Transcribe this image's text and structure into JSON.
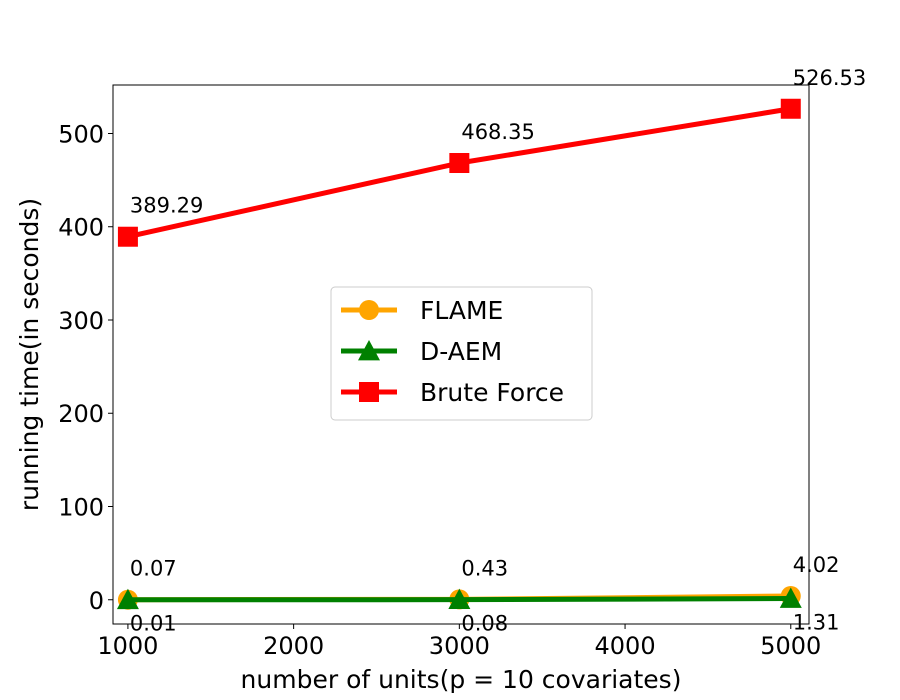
{
  "chart_data": {
    "type": "line",
    "xlabel": "number of units(p = 10 covariates)",
    "ylabel": "running time(in seconds)",
    "x": [
      1000,
      3000,
      5000
    ],
    "xlim": [
      910,
      5110
    ],
    "ylim": [
      -26,
      552
    ],
    "xticks": [
      1000,
      2000,
      3000,
      4000,
      5000
    ],
    "yticks": [
      0,
      100,
      200,
      300,
      400,
      500
    ],
    "grid": false,
    "legend_position": "center",
    "series": [
      {
        "name": "FLAME",
        "values": [
          0.07,
          0.43,
          4.02
        ],
        "color": "#FFA500",
        "marker": "circle"
      },
      {
        "name": "D-AEM",
        "values": [
          0.01,
          0.08,
          1.31
        ],
        "color": "#008000",
        "marker": "triangle"
      },
      {
        "name": "Brute Force",
        "values": [
          389.29,
          468.35,
          526.53
        ],
        "color": "#FF0000",
        "marker": "square"
      }
    ],
    "annotations": [
      {
        "text": "389.29",
        "x": 1000,
        "y": 389.29,
        "position": "above"
      },
      {
        "text": "468.35",
        "x": 3000,
        "y": 468.35,
        "position": "above"
      },
      {
        "text": "526.53",
        "x": 5000,
        "y": 526.53,
        "position": "above"
      },
      {
        "text": "0.07",
        "x": 1000,
        "y": 0.07,
        "position": "above"
      },
      {
        "text": "0.43",
        "x": 3000,
        "y": 0.43,
        "position": "above"
      },
      {
        "text": "4.02",
        "x": 5000,
        "y": 4.02,
        "position": "above"
      },
      {
        "text": "0.01",
        "x": 1000,
        "y": 0.01,
        "position": "below"
      },
      {
        "text": "0.08",
        "x": 3000,
        "y": 0.08,
        "position": "below"
      },
      {
        "text": "1.31",
        "x": 5000,
        "y": 1.31,
        "position": "below"
      }
    ]
  }
}
